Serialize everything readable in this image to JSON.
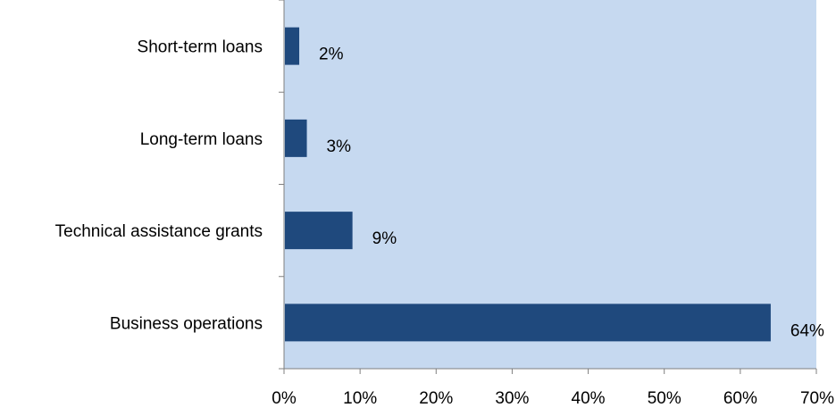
{
  "colors": {
    "plot_background": "#c6d9f0",
    "bar_fill": "#1f497d",
    "axis_line": "#7f7f7f",
    "text": "#000000"
  },
  "chart_data": {
    "type": "bar",
    "orientation": "horizontal",
    "categories": [
      "Business operations",
      "Technical assistance grants",
      "Long-term loans",
      "Short-term loans"
    ],
    "values": [
      64,
      9,
      3,
      2
    ],
    "data_labels": [
      "64%",
      "9%",
      "3%",
      "2%"
    ],
    "title": "",
    "xlabel": "",
    "ylabel": "",
    "xlim": [
      0,
      70
    ],
    "x_tick_labels": [
      "0%",
      "10%",
      "20%",
      "30%",
      "40%",
      "50%",
      "60%",
      "70%"
    ],
    "grid": false,
    "legend": "none"
  }
}
